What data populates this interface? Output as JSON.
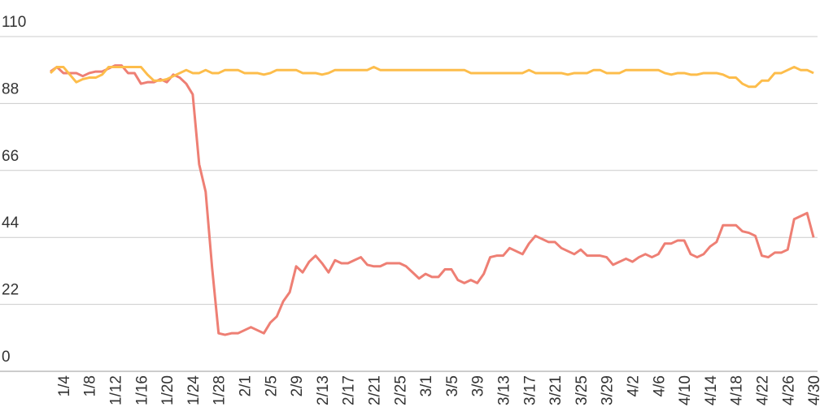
{
  "chart_data": {
    "type": "line",
    "grid": true,
    "categories": [
      null,
      null,
      "1/4",
      null,
      null,
      null,
      "1/8",
      null,
      null,
      null,
      "1/12",
      null,
      null,
      null,
      "1/16",
      null,
      null,
      null,
      "1/20",
      null,
      null,
      null,
      "1/24",
      null,
      null,
      null,
      "1/28",
      null,
      null,
      null,
      "2/1",
      null,
      null,
      null,
      "2/5",
      null,
      null,
      null,
      "2/9",
      null,
      null,
      null,
      "2/13",
      null,
      null,
      null,
      "2/17",
      null,
      null,
      null,
      "2/21",
      null,
      null,
      null,
      "2/25",
      null,
      null,
      null,
      "3/1",
      null,
      null,
      null,
      "3/5",
      null,
      null,
      null,
      "3/9",
      null,
      null,
      null,
      "3/13",
      null,
      null,
      null,
      "3/17",
      null,
      null,
      null,
      "3/21",
      null,
      null,
      null,
      "3/25",
      null,
      null,
      null,
      "3/29",
      null,
      null,
      null,
      "4/2",
      null,
      null,
      null,
      "4/6",
      null,
      null,
      null,
      "4/10",
      null,
      null,
      null,
      "4/14",
      null,
      null,
      null,
      "4/18",
      null,
      null,
      null,
      "4/22",
      null,
      null,
      null,
      "4/26",
      null,
      null,
      null,
      "4/30"
    ],
    "series": [
      {
        "color": "#ee7f74",
        "values": [
          98.5,
          100,
          98,
          98,
          98,
          97,
          98,
          98.5,
          98.5,
          99.5,
          100.5,
          100.5,
          98,
          98,
          94.5,
          95,
          95,
          96,
          95,
          97.5,
          96.5,
          94.5,
          91,
          68,
          59,
          34,
          12.5,
          12,
          12.5,
          12.5,
          13.5,
          14.5,
          13.5,
          12.5,
          16,
          18,
          23,
          26,
          34.5,
          32.5,
          36,
          38,
          35.5,
          32.5,
          36.5,
          35.5,
          35.5,
          36.5,
          37.5,
          35,
          34.5,
          34.5,
          35.5,
          35.5,
          35.5,
          34.5,
          32.5,
          30.5,
          32,
          31,
          31,
          33.5,
          33.5,
          30,
          29,
          30,
          29,
          32,
          37.5,
          38,
          38,
          40.5,
          39.5,
          38.5,
          42,
          44.5,
          43.5,
          42.5,
          42.5,
          40.5,
          39.5,
          38.5,
          40,
          38,
          38,
          38,
          37.5,
          35,
          36,
          37,
          36,
          37.5,
          38.5,
          37.5,
          38.5,
          42,
          42,
          43,
          43,
          38.5,
          37.5,
          38.5,
          41,
          42.5,
          48,
          48,
          48,
          46,
          45.5,
          44.5,
          38,
          37.5,
          39,
          39,
          40,
          50,
          51,
          52,
          44
        ]
      },
      {
        "color": "#fdbd4b",
        "values": [
          98,
          100,
          100,
          97.5,
          95,
          96,
          96.5,
          96.5,
          97.5,
          100,
          100,
          100,
          100,
          100,
          100,
          97.5,
          95.5,
          95.5,
          96,
          97,
          98,
          99,
          98,
          98,
          99,
          98,
          98,
          99,
          99,
          99,
          98,
          98,
          98,
          97.5,
          98,
          99,
          99,
          99,
          99,
          98,
          98,
          98,
          97.5,
          98,
          99,
          99,
          99,
          99,
          99,
          99,
          100,
          99,
          99,
          99,
          99,
          99,
          99,
          99,
          99,
          99,
          99,
          99,
          99,
          99,
          99,
          98,
          98,
          98,
          98,
          98,
          98,
          98,
          98,
          98,
          99,
          98,
          98,
          98,
          98,
          98,
          97.5,
          98,
          98,
          98,
          99,
          99,
          98,
          98,
          98,
          99,
          99,
          99,
          99,
          99,
          99,
          98,
          97.5,
          98,
          98,
          97.5,
          97.5,
          98,
          98,
          98,
          97.5,
          96.5,
          96.5,
          94.5,
          93.5,
          93.5,
          95.5,
          95.5,
          98,
          98,
          99,
          100,
          99,
          99,
          98
        ]
      }
    ],
    "ylim": [
      0,
      110
    ],
    "yticks": [
      0,
      22,
      44,
      66,
      88,
      110
    ]
  }
}
